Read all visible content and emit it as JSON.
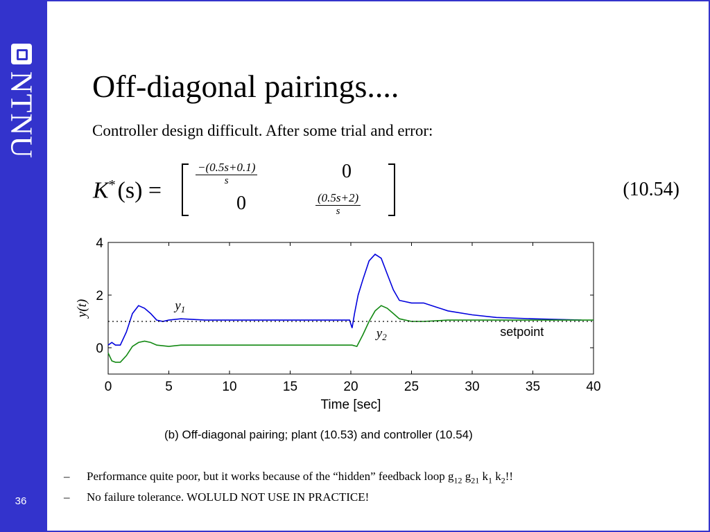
{
  "sidebar": {
    "brand": "NTNU",
    "page_number": "36",
    "color": "#3333cc"
  },
  "title": "Off-diagonal pairings....",
  "subtitle": "Controller design difficult. After some trial and error:",
  "equation": {
    "lhs": "K",
    "lhs_sup": "*",
    "lhs_arg": "(s) =",
    "m11_num": "−(0.5s+0.1)",
    "m11_den": "s",
    "m12": "0",
    "m21": "0",
    "m22_num": "(0.5s+2)",
    "m22_den": "s",
    "number": "(10.54)"
  },
  "chart_data": {
    "type": "line",
    "xlabel": "Time [sec]",
    "ylabel": "y(t)",
    "xlim": [
      0,
      40
    ],
    "ylim": [
      -1,
      4
    ],
    "xticks": [
      0,
      5,
      10,
      15,
      20,
      25,
      30,
      35,
      40
    ],
    "yticks": [
      0,
      2,
      4
    ],
    "grid": false,
    "series": [
      {
        "name": "y1",
        "color": "#0000dd",
        "x": [
          0,
          0.3,
          0.6,
          1.0,
          1.5,
          2.0,
          2.5,
          3.0,
          3.5,
          4.0,
          4.5,
          5.0,
          6.0,
          8.0,
          10.0,
          15.0,
          19.9,
          20.1,
          20.3,
          20.6,
          21.0,
          21.5,
          22.0,
          22.5,
          23.0,
          23.5,
          24.0,
          25.0,
          26.0,
          27.0,
          28.0,
          30.0,
          32.0,
          35.0,
          39.0
        ],
        "y": [
          0.1,
          0.2,
          0.1,
          0.1,
          0.6,
          1.3,
          1.6,
          1.5,
          1.3,
          1.05,
          1.0,
          1.05,
          1.1,
          1.05,
          1.05,
          1.05,
          1.05,
          0.75,
          1.3,
          2.0,
          2.6,
          3.3,
          3.55,
          3.4,
          2.8,
          2.2,
          1.8,
          1.7,
          1.7,
          1.55,
          1.4,
          1.25,
          1.15,
          1.1,
          1.05
        ]
      },
      {
        "name": "y2",
        "color": "#118811",
        "x": [
          0,
          0.3,
          0.6,
          1.0,
          1.5,
          2.0,
          2.5,
          3.0,
          3.5,
          4.0,
          5.0,
          6.0,
          8.0,
          10.0,
          15.0,
          19.9,
          20.1,
          20.5,
          21.0,
          21.5,
          22.0,
          22.5,
          23.0,
          23.5,
          24.0,
          25.0,
          26.0,
          28.0,
          30.0,
          35.0,
          40.0
        ],
        "y": [
          -0.2,
          -0.5,
          -0.55,
          -0.55,
          -0.3,
          0.05,
          0.2,
          0.25,
          0.2,
          0.1,
          0.05,
          0.1,
          0.1,
          0.1,
          0.1,
          0.1,
          0.1,
          0.05,
          0.5,
          1.0,
          1.4,
          1.6,
          1.5,
          1.3,
          1.1,
          1.0,
          1.0,
          1.05,
          1.05,
          1.05,
          1.05
        ]
      },
      {
        "name": "setpoint",
        "color": "#000000",
        "style": "dotted",
        "x": [
          0,
          40
        ],
        "y": [
          1,
          1
        ]
      }
    ],
    "annotations": {
      "y1": "y1",
      "y2": "y2",
      "setpoint": "setpoint"
    }
  },
  "caption": "(b) Off-diagonal pairing; plant (10.53) and controller (10.54)",
  "bullets": [
    {
      "dash": "–",
      "pre": "Performance quite poor, but it works because of the “hidden” feedback loop g",
      "s1": "12",
      "t1": " g",
      "s2": "21",
      "t2": " k",
      "s3": "1",
      "t3": " k",
      "s4": "2",
      "t4": "!!"
    },
    {
      "dash": "–",
      "pre": "No failure tolerance. WOLULD NOT USE IN PRACTICE!"
    }
  ]
}
